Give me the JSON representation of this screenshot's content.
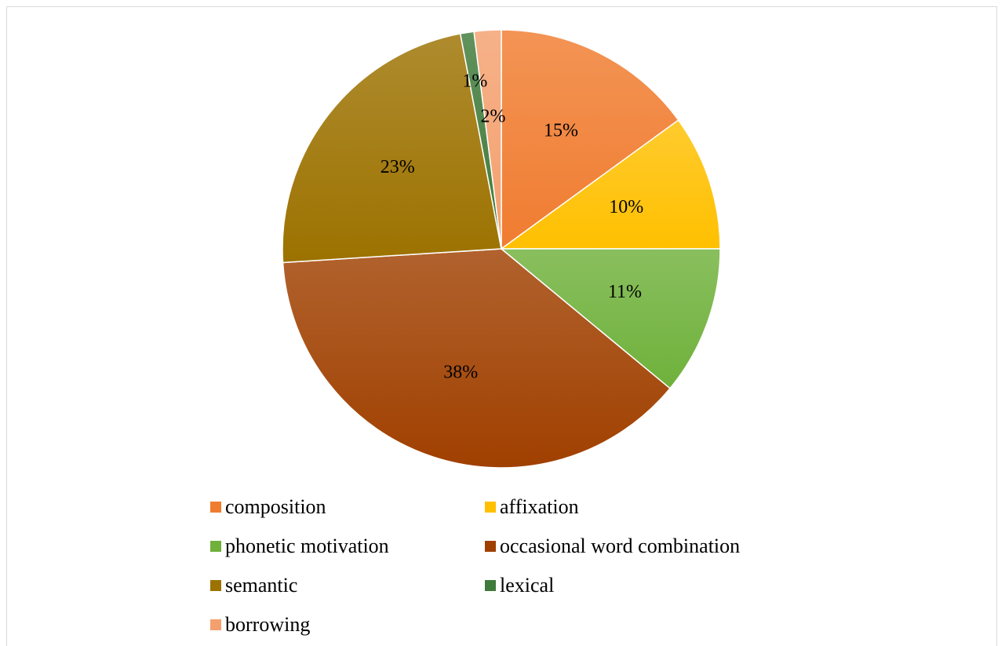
{
  "chart_data": {
    "type": "pie",
    "title": "",
    "categories": [
      "composition",
      "affixation",
      "phonetic motivation",
      "occasional word combination",
      "semantic",
      "lexical",
      "borrowing"
    ],
    "values": [
      15,
      10,
      11,
      38,
      23,
      1,
      2
    ],
    "data_labels": [
      "15%",
      "10%",
      "11%",
      "38%",
      "23%",
      "1%",
      "2%"
    ],
    "colors": [
      "#f07c30",
      "#ffc000",
      "#6fb13b",
      "#a04000",
      "#9c7200",
      "#3f7a3a",
      "#f4a06e"
    ],
    "legend_position": "bottom"
  }
}
